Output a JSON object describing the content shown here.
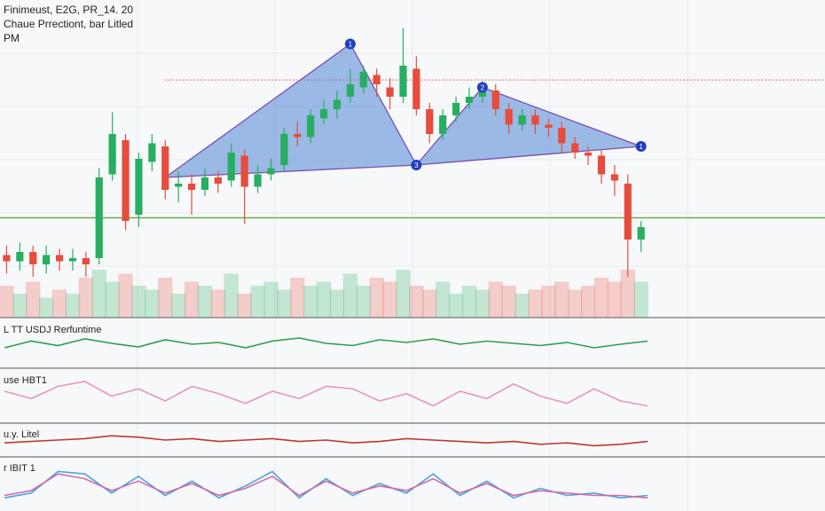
{
  "header": {
    "lines": [
      "Finimeust, E2G, PR_14. 20",
      "Chaue Prrectiont, bar Litled",
      "PM"
    ]
  },
  "chart_data": [
    {
      "type": "candlestick",
      "x": [
        0,
        1,
        2,
        3,
        4,
        5,
        6,
        7,
        8,
        9,
        10,
        11,
        12,
        13,
        14,
        15,
        16,
        17,
        18,
        19,
        20,
        21,
        22,
        23,
        24,
        25,
        26,
        27,
        28,
        29,
        30,
        31,
        32,
        33,
        34,
        35,
        36,
        37,
        38,
        39,
        40,
        41,
        42,
        43,
        44,
        45,
        46,
        47,
        48
      ],
      "open": [
        19,
        17,
        20,
        16,
        19,
        17,
        18,
        18,
        45,
        56,
        32,
        49,
        54,
        41,
        42,
        40,
        44,
        43,
        51,
        41,
        45,
        48,
        58,
        57,
        63,
        66,
        70,
        73,
        77,
        73,
        70,
        79,
        66,
        58,
        64,
        68,
        70,
        72,
        66,
        61,
        64,
        61,
        60,
        55,
        52,
        51,
        45,
        42,
        24
      ],
      "high": [
        22,
        23,
        22,
        22,
        21,
        21,
        20,
        47,
        65,
        58,
        52,
        58,
        56,
        46,
        45,
        47,
        46,
        55,
        53,
        48,
        50,
        60,
        62,
        66,
        69,
        72,
        79,
        80,
        79,
        76,
        92,
        83,
        68,
        66,
        70,
        73,
        75,
        74,
        68,
        66,
        66,
        63,
        62,
        57,
        54,
        53,
        48,
        45,
        30
      ],
      "low": [
        13,
        14,
        12,
        13,
        14,
        14,
        12,
        16,
        43,
        27,
        28,
        46,
        37,
        36,
        32,
        38,
        39,
        41,
        29,
        39,
        43,
        46,
        54,
        55,
        61,
        63,
        68,
        71,
        70,
        66,
        68,
        64,
        55,
        56,
        62,
        66,
        68,
        64,
        58,
        59,
        58,
        57,
        52,
        50,
        48,
        42,
        38,
        12,
        20
      ],
      "close": [
        17,
        20,
        16,
        19,
        17,
        18,
        16,
        44,
        58,
        30,
        50,
        55,
        40,
        42,
        40,
        44,
        42,
        52,
        41,
        45,
        47,
        58,
        57,
        64,
        66,
        69,
        74,
        78,
        74,
        70,
        80,
        66,
        58,
        64,
        68,
        70,
        72,
        66,
        61,
        64,
        61,
        60,
        55,
        52,
        51,
        45,
        43,
        24,
        28
      ],
      "volume": [
        40,
        30,
        45,
        25,
        35,
        30,
        50,
        60,
        45,
        55,
        40,
        35,
        50,
        30,
        45,
        40,
        35,
        55,
        30,
        40,
        45,
        35,
        50,
        40,
        45,
        35,
        55,
        40,
        50,
        45,
        60,
        40,
        35,
        45,
        30,
        40,
        35,
        45,
        40,
        30,
        35,
        40,
        45,
        35,
        40,
        50,
        45,
        60,
        45
      ],
      "xlim": [
        -0.5,
        49.5
      ],
      "ylim": [
        0,
        100
      ],
      "volume_lim": [
        0,
        100
      ],
      "up_color": "#27ae60",
      "down_color": "#e74c3c",
      "pattern": {
        "color": "#5b8fd6",
        "points": [
          {
            "x": 12,
            "y": 44,
            "label": null
          },
          {
            "x": 26,
            "y": 87,
            "label": "1"
          },
          {
            "x": 31,
            "y": 48,
            "label": "3"
          },
          {
            "x": 36,
            "y": 73,
            "label": "2"
          },
          {
            "x": 48,
            "y": 54,
            "label": "1"
          }
        ]
      },
      "hlines": [
        {
          "y": 75.4,
          "color": "#e06060",
          "dashed": true
        },
        {
          "y": 31,
          "color": "#6ab04c",
          "dashed": false
        }
      ]
    },
    {
      "type": "line",
      "title": "L TT USDJ Rerfuntime",
      "ylim": [
        0,
        100
      ],
      "series": [
        {
          "color": "#2e9e4f",
          "values": [
            40,
            55,
            45,
            60,
            50,
            42,
            58,
            48,
            52,
            40,
            55,
            62,
            50,
            45,
            58,
            52,
            60,
            48,
            55,
            50,
            45,
            52,
            40,
            48,
            55
          ]
        }
      ]
    },
    {
      "type": "line",
      "title": "use HBT1",
      "ylim": [
        0,
        100
      ],
      "series": [
        {
          "color": "#e896b8",
          "values": [
            60,
            45,
            70,
            80,
            50,
            65,
            40,
            70,
            55,
            35,
            60,
            45,
            70,
            65,
            40,
            55,
            30,
            60,
            45,
            75,
            50,
            35,
            65,
            40,
            30
          ]
        }
      ]
    },
    {
      "type": "line",
      "title": "u.y. Litel",
      "ylim": [
        0,
        100
      ],
      "series": [
        {
          "color": "#c0392b",
          "values": [
            40,
            45,
            50,
            55,
            65,
            60,
            50,
            55,
            45,
            50,
            55,
            45,
            50,
            40,
            45,
            55,
            50,
            45,
            40,
            45,
            35,
            40,
            30,
            35,
            45
          ]
        }
      ]
    },
    {
      "type": "line",
      "title": "r IBIT 1",
      "ylim": [
        0,
        100
      ],
      "series": [
        {
          "color": "#4aa3df",
          "values": [
            20,
            30,
            75,
            70,
            30,
            65,
            25,
            55,
            20,
            45,
            75,
            20,
            60,
            25,
            50,
            30,
            70,
            25,
            55,
            20,
            40,
            25,
            30,
            20,
            25
          ]
        },
        {
          "color": "#d46aa8",
          "values": [
            25,
            35,
            70,
            60,
            35,
            55,
            30,
            50,
            25,
            40,
            65,
            25,
            55,
            30,
            45,
            35,
            60,
            30,
            50,
            25,
            35,
            30,
            25,
            25,
            20
          ]
        }
      ]
    }
  ]
}
